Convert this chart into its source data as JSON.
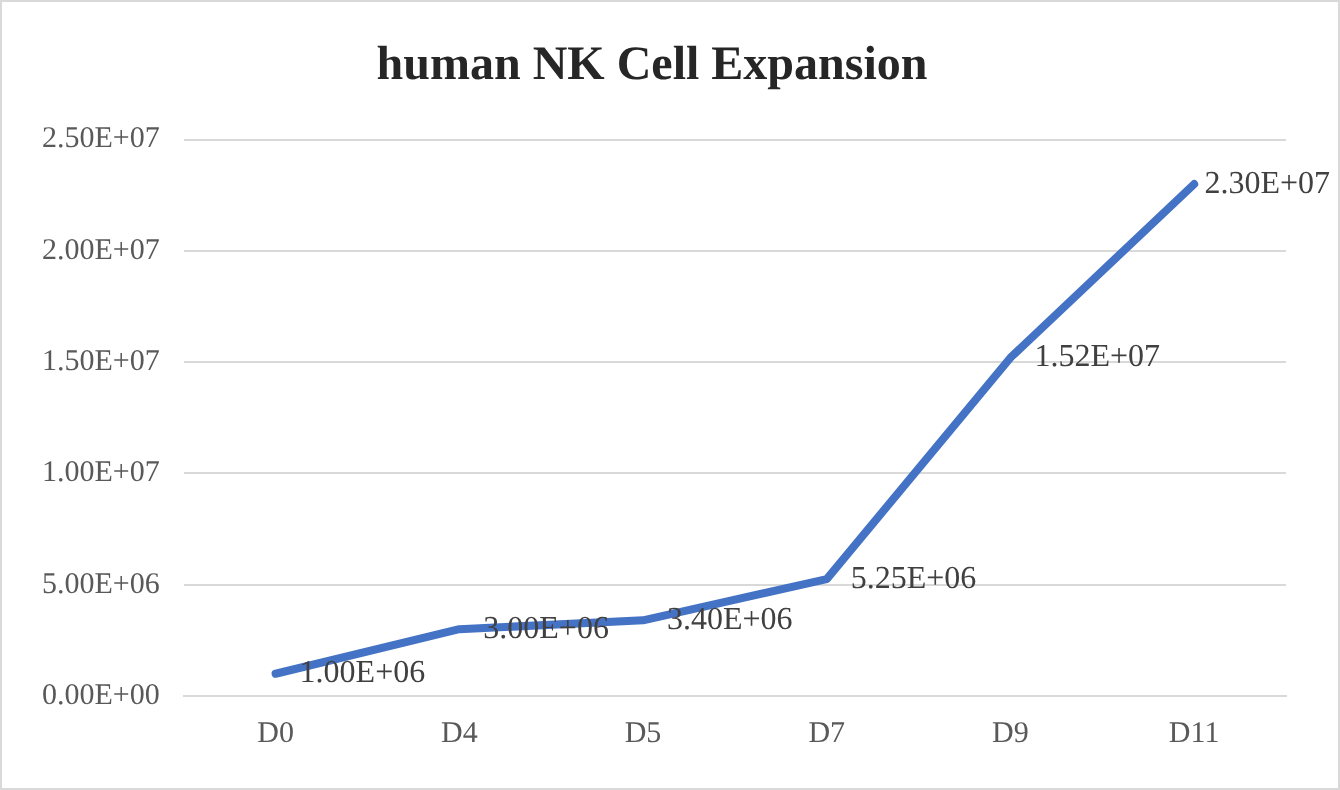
{
  "chart_data": {
    "type": "line",
    "title": "human NK Cell Expansion",
    "categories": [
      "D0",
      "D4",
      "D5",
      "D7",
      "D9",
      "D11"
    ],
    "series": [
      {
        "color": "#4472c4",
        "values": [
          1000000,
          3000000,
          3400000,
          5250000,
          15200000,
          23000000
        ],
        "value_labels": [
          "1.00E+06",
          "3.00E+06",
          "3.40E+06",
          "5.25E+06",
          "1.52E+07",
          "2.30E+07"
        ]
      }
    ],
    "ylim": [
      0,
      25000000
    ],
    "yticks": [
      {
        "value": 0,
        "label": "0.00E+00"
      },
      {
        "value": 5000000,
        "label": "5.00E+06"
      },
      {
        "value": 10000000,
        "label": "1.00E+07"
      },
      {
        "value": 15000000,
        "label": "1.50E+07"
      },
      {
        "value": 20000000,
        "label": "2.00E+07"
      },
      {
        "value": 25000000,
        "label": "2.50E+07"
      }
    ],
    "grid": "y",
    "marker": "none",
    "line_style": "solid",
    "legend": false
  }
}
